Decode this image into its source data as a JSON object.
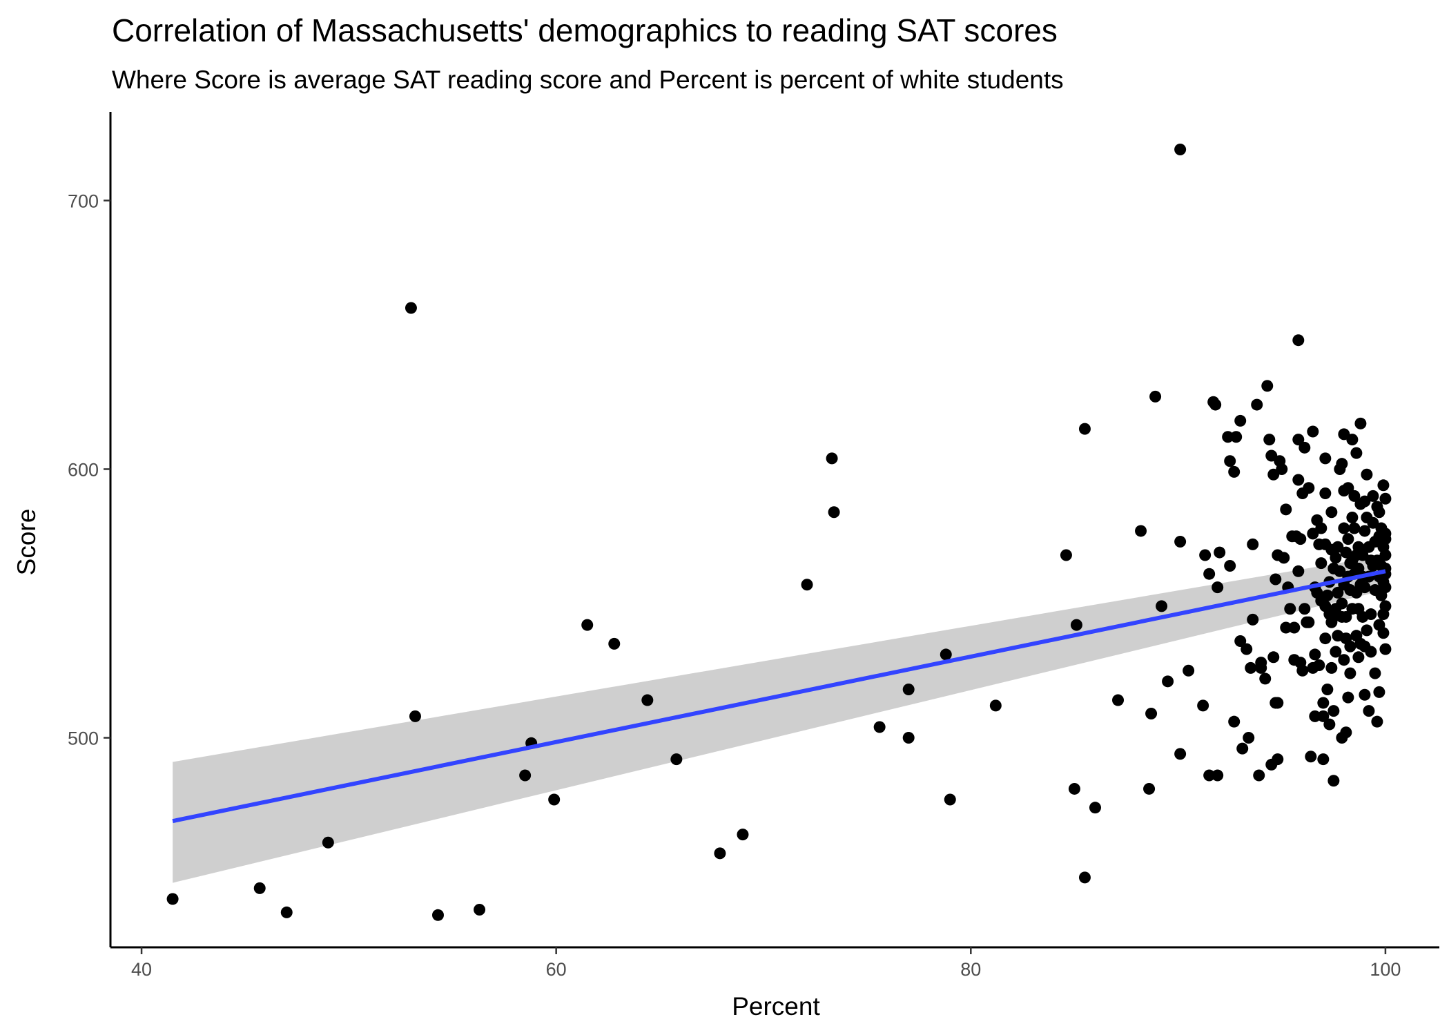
{
  "chart_data": {
    "type": "scatter",
    "title": "Correlation of Massachusetts' demographics to reading SAT scores",
    "subtitle": "Where Score is average SAT reading score and Percent is percent of white students",
    "xlabel": "Percent",
    "ylabel": "Score",
    "xlim": [
      38.5,
      102.6
    ],
    "ylim": [
      422,
      733
    ],
    "xticks": [
      40,
      60,
      80,
      100
    ],
    "yticks": [
      500,
      600,
      700
    ],
    "grid": false,
    "point_color": "#000000",
    "fit_color": "#3344ff",
    "band_color": "#cccccc",
    "regression": {
      "method": "lm",
      "x": [
        41.5,
        100.0
      ],
      "y": [
        469.0,
        562.0
      ],
      "ci_lower": [
        446.0,
        555.0
      ],
      "ci_upper": [
        491.0,
        568.0
      ]
    },
    "points": [
      [
        41.5,
        440
      ],
      [
        45.7,
        444
      ],
      [
        47.0,
        435
      ],
      [
        49.0,
        461
      ],
      [
        53.0,
        660
      ],
      [
        53.2,
        508
      ],
      [
        54.3,
        434
      ],
      [
        56.3,
        436
      ],
      [
        58.5,
        486
      ],
      [
        58.8,
        498
      ],
      [
        59.9,
        477
      ],
      [
        61.5,
        542
      ],
      [
        62.8,
        535
      ],
      [
        64.4,
        514
      ],
      [
        65.8,
        492
      ],
      [
        67.9,
        457
      ],
      [
        69.0,
        464
      ],
      [
        72.1,
        557
      ],
      [
        73.3,
        604
      ],
      [
        73.4,
        584
      ],
      [
        75.6,
        504
      ],
      [
        77.0,
        518
      ],
      [
        77.0,
        500
      ],
      [
        78.8,
        531
      ],
      [
        79.0,
        477
      ],
      [
        81.2,
        512
      ],
      [
        84.6,
        568
      ],
      [
        85.0,
        481
      ],
      [
        85.1,
        542
      ],
      [
        85.5,
        615
      ],
      [
        85.5,
        448
      ],
      [
        86.0,
        474
      ],
      [
        87.1,
        514
      ],
      [
        88.2,
        577
      ],
      [
        88.6,
        481
      ],
      [
        88.7,
        509
      ],
      [
        88.9,
        627
      ],
      [
        89.2,
        549
      ],
      [
        89.5,
        521
      ],
      [
        90.1,
        719
      ],
      [
        90.1,
        573
      ],
      [
        90.1,
        494
      ],
      [
        90.5,
        525
      ],
      [
        91.2,
        512
      ],
      [
        91.3,
        568
      ],
      [
        91.5,
        561
      ],
      [
        91.5,
        486
      ],
      [
        91.7,
        625
      ],
      [
        91.8,
        624
      ],
      [
        91.9,
        556
      ],
      [
        91.9,
        486
      ],
      [
        92.0,
        569
      ],
      [
        92.4,
        612
      ],
      [
        92.5,
        603
      ],
      [
        92.5,
        564
      ],
      [
        92.7,
        599
      ],
      [
        92.7,
        506
      ],
      [
        92.8,
        612
      ],
      [
        93.0,
        618
      ],
      [
        93.0,
        536
      ],
      [
        93.1,
        496
      ],
      [
        93.3,
        533
      ],
      [
        93.4,
        500
      ],
      [
        93.5,
        526
      ],
      [
        93.6,
        544
      ],
      [
        93.6,
        572
      ],
      [
        93.8,
        624
      ],
      [
        93.9,
        486
      ],
      [
        94.0,
        528
      ],
      [
        94.0,
        526
      ],
      [
        94.2,
        522
      ],
      [
        94.3,
        631
      ],
      [
        94.4,
        611
      ],
      [
        94.5,
        490
      ],
      [
        94.5,
        605
      ],
      [
        94.6,
        598
      ],
      [
        94.6,
        530
      ],
      [
        94.7,
        513
      ],
      [
        94.7,
        559
      ],
      [
        94.8,
        568
      ],
      [
        94.8,
        513
      ],
      [
        94.8,
        492
      ],
      [
        94.9,
        603
      ],
      [
        95.0,
        600
      ],
      [
        95.1,
        567
      ],
      [
        95.2,
        585
      ],
      [
        95.2,
        541
      ],
      [
        95.3,
        556
      ],
      [
        95.4,
        548
      ],
      [
        95.5,
        575
      ],
      [
        95.6,
        529
      ],
      [
        95.6,
        541
      ],
      [
        95.7,
        575
      ],
      [
        95.8,
        648
      ],
      [
        95.8,
        611
      ],
      [
        95.8,
        596
      ],
      [
        95.8,
        562
      ],
      [
        95.9,
        574
      ],
      [
        95.9,
        528
      ],
      [
        96.0,
        525
      ],
      [
        96.0,
        591
      ],
      [
        96.1,
        608
      ],
      [
        96.1,
        548
      ],
      [
        96.2,
        543
      ],
      [
        96.3,
        543
      ],
      [
        96.3,
        593
      ],
      [
        96.4,
        493
      ],
      [
        96.5,
        614
      ],
      [
        96.5,
        576
      ],
      [
        96.5,
        526
      ],
      [
        96.6,
        508
      ],
      [
        96.6,
        556
      ],
      [
        96.6,
        531
      ],
      [
        96.7,
        581
      ],
      [
        96.7,
        554
      ],
      [
        96.8,
        527
      ],
      [
        96.8,
        572
      ],
      [
        96.9,
        565
      ],
      [
        96.9,
        578
      ],
      [
        96.9,
        551
      ],
      [
        97.0,
        492
      ],
      [
        97.0,
        513
      ],
      [
        97.0,
        508
      ],
      [
        97.1,
        604
      ],
      [
        97.1,
        591
      ],
      [
        97.1,
        572
      ],
      [
        97.1,
        549
      ],
      [
        97.1,
        537
      ],
      [
        97.2,
        553
      ],
      [
        97.2,
        518
      ],
      [
        97.3,
        558
      ],
      [
        97.3,
        546
      ],
      [
        97.3,
        505
      ],
      [
        97.4,
        570
      ],
      [
        97.4,
        584
      ],
      [
        97.4,
        543
      ],
      [
        97.4,
        526
      ],
      [
        97.5,
        510
      ],
      [
        97.5,
        484
      ],
      [
        97.5,
        563
      ],
      [
        97.5,
        545
      ],
      [
        97.6,
        532
      ],
      [
        97.6,
        548
      ],
      [
        97.6,
        567
      ],
      [
        97.7,
        538
      ],
      [
        97.7,
        554
      ],
      [
        97.7,
        571
      ],
      [
        97.8,
        600
      ],
      [
        97.8,
        562
      ],
      [
        97.9,
        545
      ],
      [
        97.9,
        602
      ],
      [
        97.9,
        500
      ],
      [
        97.9,
        550
      ],
      [
        98.0,
        578
      ],
      [
        98.0,
        592
      ],
      [
        98.0,
        613
      ],
      [
        98.0,
        557
      ],
      [
        98.0,
        529
      ],
      [
        98.1,
        502
      ],
      [
        98.1,
        537
      ],
      [
        98.1,
        569
      ],
      [
        98.1,
        545
      ],
      [
        98.2,
        593
      ],
      [
        98.2,
        574
      ],
      [
        98.2,
        560
      ],
      [
        98.2,
        515
      ],
      [
        98.3,
        565
      ],
      [
        98.3,
        555
      ],
      [
        98.3,
        534
      ],
      [
        98.3,
        524
      ],
      [
        98.4,
        582
      ],
      [
        98.4,
        566
      ],
      [
        98.4,
        611
      ],
      [
        98.4,
        548
      ],
      [
        98.5,
        561
      ],
      [
        98.5,
        578
      ],
      [
        98.5,
        590
      ],
      [
        98.6,
        568
      ],
      [
        98.6,
        538
      ],
      [
        98.6,
        554
      ],
      [
        98.6,
        606
      ],
      [
        98.7,
        530
      ],
      [
        98.7,
        548
      ],
      [
        98.7,
        563
      ],
      [
        98.7,
        571
      ],
      [
        98.8,
        587
      ],
      [
        98.8,
        535
      ],
      [
        98.8,
        557
      ],
      [
        98.8,
        617
      ],
      [
        98.9,
        545
      ],
      [
        98.9,
        560
      ],
      [
        98.9,
        568
      ],
      [
        99.0,
        588
      ],
      [
        99.0,
        577
      ],
      [
        99.0,
        556
      ],
      [
        99.0,
        516
      ],
      [
        99.0,
        534
      ],
      [
        99.1,
        582
      ],
      [
        99.1,
        540
      ],
      [
        99.1,
        598
      ],
      [
        99.2,
        571
      ],
      [
        99.2,
        560
      ],
      [
        99.2,
        510
      ],
      [
        99.3,
        566
      ],
      [
        99.3,
        546
      ],
      [
        99.3,
        532
      ],
      [
        99.4,
        580
      ],
      [
        99.4,
        564
      ],
      [
        99.4,
        590
      ],
      [
        99.5,
        555
      ],
      [
        99.5,
        573
      ],
      [
        99.5,
        524
      ],
      [
        99.6,
        586
      ],
      [
        99.6,
        506
      ],
      [
        99.6,
        566
      ],
      [
        99.7,
        584
      ],
      [
        99.7,
        560
      ],
      [
        99.7,
        575
      ],
      [
        99.7,
        542
      ],
      [
        99.7,
        517
      ],
      [
        99.8,
        578
      ],
      [
        99.8,
        553
      ],
      [
        99.8,
        564
      ],
      [
        99.9,
        571
      ],
      [
        99.9,
        594
      ],
      [
        99.9,
        546
      ],
      [
        99.9,
        539
      ],
      [
        99.9,
        558
      ],
      [
        100.0,
        589
      ],
      [
        100.0,
        568
      ],
      [
        100.0,
        561
      ],
      [
        100.0,
        576
      ],
      [
        100.0,
        533
      ],
      [
        100.0,
        549
      ],
      [
        100.0,
        574
      ],
      [
        100.0,
        563
      ],
      [
        100.0,
        556
      ]
    ]
  }
}
